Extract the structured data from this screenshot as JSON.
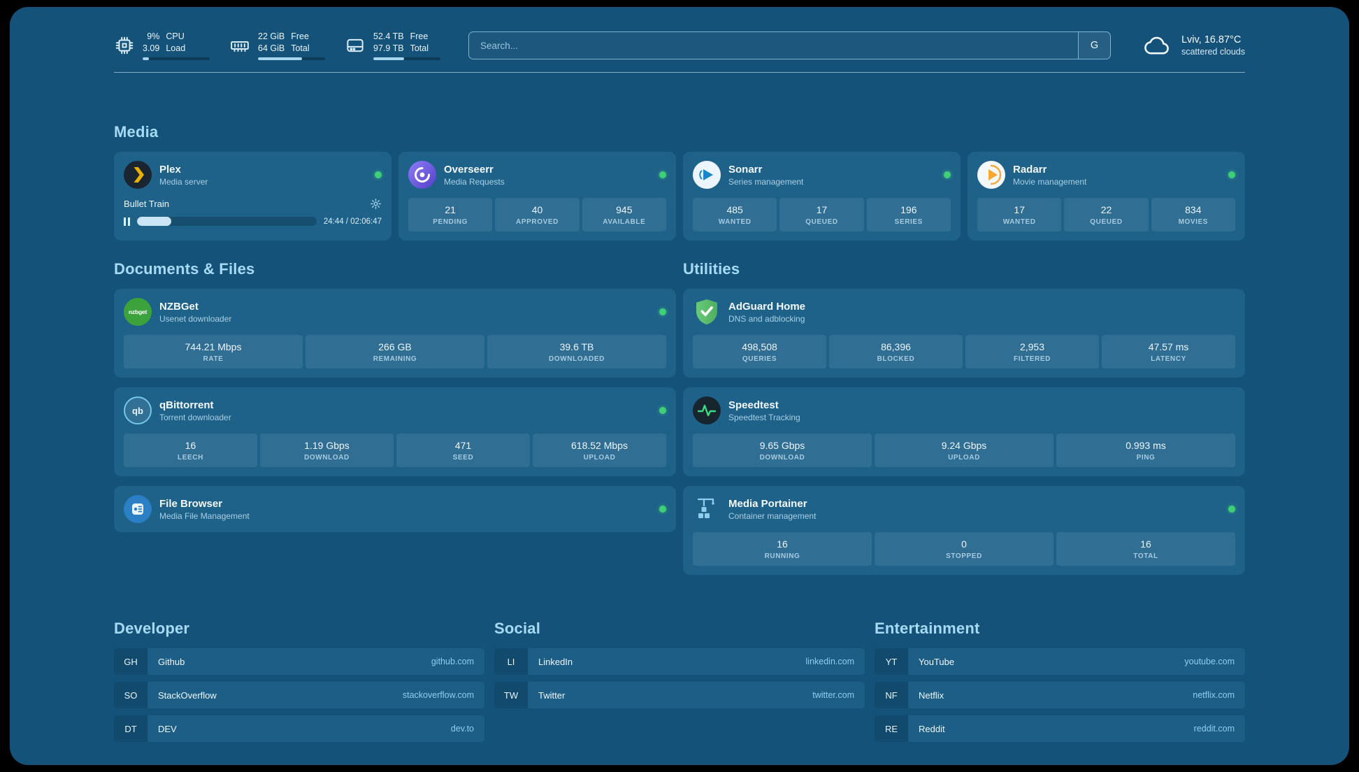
{
  "colors": {
    "status_online": "#3fd077",
    "board_background": "#15527a",
    "card_background": "#1e6189",
    "section_heading": "#a7dbf5",
    "bookmark_domain": "#8fcdef"
  },
  "header": {
    "cpu": {
      "values": [
        "9%",
        "3.09"
      ],
      "labels": [
        "CPU",
        "Load"
      ],
      "progress_pct": 9
    },
    "memory": {
      "values": [
        "22 GiB",
        "64 GiB"
      ],
      "labels": [
        "Free",
        "Total"
      ],
      "progress_pct": 66
    },
    "disk": {
      "values": [
        "52.4 TB",
        "97.9 TB"
      ],
      "labels": [
        "Free",
        "Total"
      ],
      "progress_pct": 46
    },
    "search": {
      "placeholder": "Search...",
      "button": "G"
    },
    "weather": {
      "location": "Lviv, 16.87°C",
      "condition": "scattered clouds"
    }
  },
  "media": {
    "title": "Media",
    "plex": {
      "name": "Plex",
      "subtitle": "Media server",
      "now_playing": "Bullet Train",
      "time": "24:44 / 02:06:47",
      "progress_pct": 19
    },
    "overseerr": {
      "name": "Overseerr",
      "subtitle": "Media Requests",
      "stats": [
        {
          "v": "21",
          "l": "PENDING"
        },
        {
          "v": "40",
          "l": "APPROVED"
        },
        {
          "v": "945",
          "l": "AVAILABLE"
        }
      ]
    },
    "sonarr": {
      "name": "Sonarr",
      "subtitle": "Series management",
      "stats": [
        {
          "v": "485",
          "l": "WANTED"
        },
        {
          "v": "17",
          "l": "QUEUED"
        },
        {
          "v": "196",
          "l": "SERIES"
        }
      ]
    },
    "radarr": {
      "name": "Radarr",
      "subtitle": "Movie management",
      "stats": [
        {
          "v": "17",
          "l": "WANTED"
        },
        {
          "v": "22",
          "l": "QUEUED"
        },
        {
          "v": "834",
          "l": "MOVIES"
        }
      ]
    }
  },
  "documents": {
    "title": "Documents & Files",
    "nzbget": {
      "name": "NZBGet",
      "subtitle": "Usenet downloader",
      "icon_text": "nzbget",
      "stats": [
        {
          "v": "744.21 Mbps",
          "l": "RATE"
        },
        {
          "v": "266 GB",
          "l": "REMAINING"
        },
        {
          "v": "39.6 TB",
          "l": "DOWNLOADED"
        }
      ]
    },
    "qbittorrent": {
      "name": "qBittorrent",
      "subtitle": "Torrent downloader",
      "icon_text": "qb",
      "stats": [
        {
          "v": "16",
          "l": "LEECH"
        },
        {
          "v": "1.19 Gbps",
          "l": "DOWNLOAD"
        },
        {
          "v": "471",
          "l": "SEED"
        },
        {
          "v": "618.52 Mbps",
          "l": "UPLOAD"
        }
      ]
    },
    "filebrowser": {
      "name": "File Browser",
      "subtitle": "Media File Management"
    }
  },
  "utilities": {
    "title": "Utilities",
    "adguard": {
      "name": "AdGuard Home",
      "subtitle": "DNS and adblocking",
      "stats": [
        {
          "v": "498,508",
          "l": "QUERIES"
        },
        {
          "v": "86,396",
          "l": "BLOCKED"
        },
        {
          "v": "2,953",
          "l": "FILTERED"
        },
        {
          "v": "47.57 ms",
          "l": "LATENCY"
        }
      ]
    },
    "speedtest": {
      "name": "Speedtest",
      "subtitle": "Speedtest Tracking",
      "stats": [
        {
          "v": "9.65 Gbps",
          "l": "DOWNLOAD"
        },
        {
          "v": "9.24 Gbps",
          "l": "UPLOAD"
        },
        {
          "v": "0.993 ms",
          "l": "PING"
        }
      ]
    },
    "portainer": {
      "name": "Media Portainer",
      "subtitle": "Container management",
      "stats": [
        {
          "v": "16",
          "l": "RUNNING"
        },
        {
          "v": "0",
          "l": "STOPPED"
        },
        {
          "v": "16",
          "l": "TOTAL"
        }
      ]
    }
  },
  "bookmarks": {
    "developer": {
      "title": "Developer",
      "items": [
        {
          "abbr": "GH",
          "name": "Github",
          "domain": "github.com"
        },
        {
          "abbr": "SO",
          "name": "StackOverflow",
          "domain": "stackoverflow.com"
        },
        {
          "abbr": "DT",
          "name": "DEV",
          "domain": "dev.to"
        }
      ]
    },
    "social": {
      "title": "Social",
      "items": [
        {
          "abbr": "LI",
          "name": "LinkedIn",
          "domain": "linkedin.com"
        },
        {
          "abbr": "TW",
          "name": "Twitter",
          "domain": "twitter.com"
        }
      ]
    },
    "entertainment": {
      "title": "Entertainment",
      "items": [
        {
          "abbr": "YT",
          "name": "YouTube",
          "domain": "youtube.com"
        },
        {
          "abbr": "NF",
          "name": "Netflix",
          "domain": "netflix.com"
        },
        {
          "abbr": "RE",
          "name": "Reddit",
          "domain": "reddit.com"
        }
      ]
    }
  }
}
